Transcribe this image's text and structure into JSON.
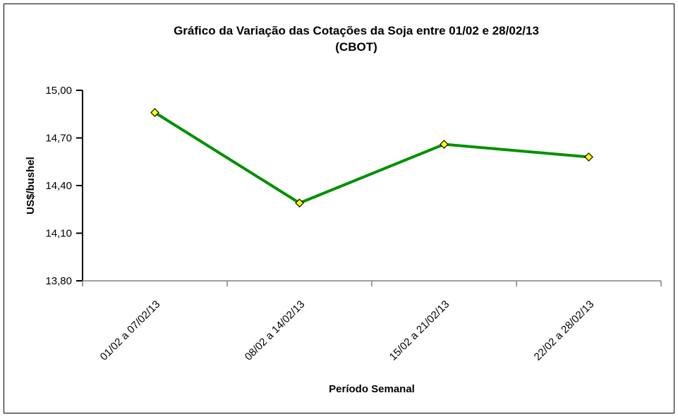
{
  "page": {
    "title_line1": "Gráfico da Variação das Cotações da Soja entre 01/02 e 28/02/13",
    "title_line2": "(CBOT)"
  },
  "chart_data": {
    "type": "line",
    "title": "Gráfico da Variação das Cotações da Soja entre 01/02 e 28/02/13 (CBOT)",
    "categories": [
      "01/02 a 07/02/13",
      "08/02 a 14/02/13",
      "15/02 a 21/02/13",
      "22/02 a 28/02/13"
    ],
    "values": [
      14.86,
      14.29,
      14.66,
      14.58
    ],
    "xlabel": "Período Semanal",
    "ylabel": "US$/bushel",
    "ylim": [
      13.8,
      15.0
    ],
    "yticks": [
      {
        "value": 15.0,
        "label": "15,00"
      },
      {
        "value": 14.7,
        "label": "14,70"
      },
      {
        "value": 14.4,
        "label": "14,40"
      },
      {
        "value": 14.1,
        "label": "14,10"
      },
      {
        "value": 13.8,
        "label": "13,80"
      }
    ],
    "grid": false,
    "legend": "none",
    "marker": "diamond",
    "colors": {
      "line": "#009100",
      "marker_fill": "#FFFF00",
      "marker_stroke": "#000000",
      "y_axis": "#000000",
      "x_axis": "#808080",
      "text": "#000000",
      "background": "#FFFFFF",
      "border": "#000000"
    }
  }
}
